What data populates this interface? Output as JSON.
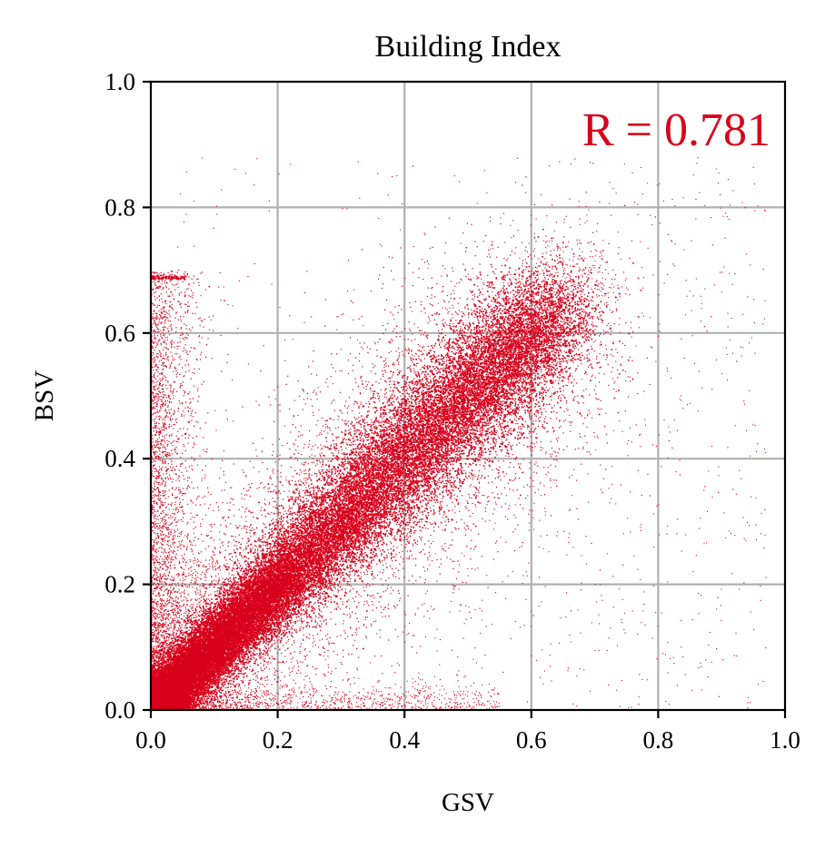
{
  "chart_data": {
    "type": "scatter",
    "title": "Building Index",
    "xlabel": "GSV",
    "ylabel": "BSV",
    "xlim": [
      0.0,
      1.0
    ],
    "ylim": [
      0.0,
      1.0
    ],
    "xticks": [
      "0.0",
      "0.2",
      "0.4",
      "0.6",
      "0.8",
      "1.0"
    ],
    "yticks": [
      "0.0",
      "0.2",
      "0.4",
      "0.6",
      "0.8",
      "1.0"
    ],
    "grid": true,
    "annotation": "R = 0.781",
    "annotation_placement": "top-right",
    "point_color": "#d9001b",
    "grid_color": "#b0b0b0",
    "density_center_points": [
      [
        0.02,
        0.03
      ],
      [
        0.1,
        0.1
      ],
      [
        0.2,
        0.2
      ],
      [
        0.3,
        0.3
      ],
      [
        0.4,
        0.39
      ],
      [
        0.5,
        0.5
      ],
      [
        0.57,
        0.57
      ],
      [
        0.62,
        0.62
      ]
    ],
    "correlation_r": 0.781
  }
}
